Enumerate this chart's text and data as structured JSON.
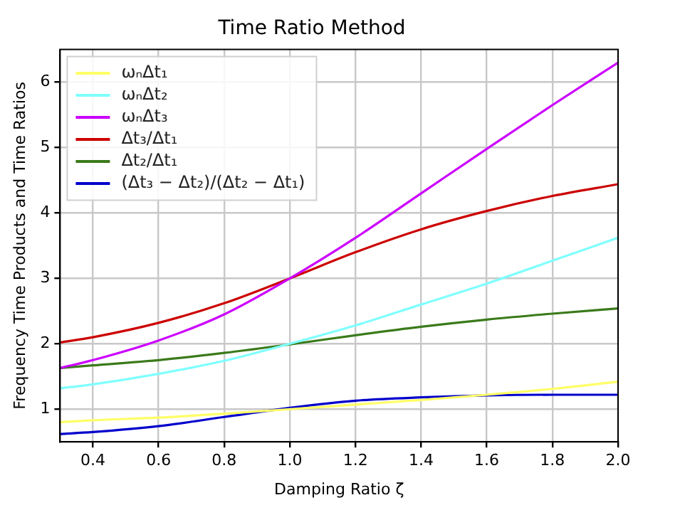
{
  "chart_data": {
    "type": "line",
    "title": "Time Ratio Method",
    "xlabel": "Damping Ratio ζ",
    "ylabel": "Frequency Time Products and Time Ratios",
    "x": [
      0.3,
      0.4,
      0.6,
      0.8,
      1.0,
      1.2,
      1.4,
      1.6,
      1.8,
      2.0
    ],
    "xlim": [
      0.3,
      2.0
    ],
    "xticks": [
      {
        "value": 0.4,
        "label": "0.4"
      },
      {
        "value": 0.6,
        "label": "0.6"
      },
      {
        "value": 0.8,
        "label": "0.8"
      },
      {
        "value": 1.0,
        "label": "1.0"
      },
      {
        "value": 1.2,
        "label": "1.2"
      },
      {
        "value": 1.4,
        "label": "1.4"
      },
      {
        "value": 1.6,
        "label": "1.6"
      },
      {
        "value": 1.8,
        "label": "1.8"
      },
      {
        "value": 2.0,
        "label": "2.0"
      }
    ],
    "ylim": [
      0.5,
      6.5
    ],
    "yticks": [
      1,
      2,
      3,
      4,
      5,
      6
    ],
    "grid": true,
    "legend": "top left",
    "marker": "none",
    "line_style": "solid",
    "series": [
      {
        "name": "ωₙΔt₁",
        "color": "#ffff66",
        "values": [
          0.8,
          0.83,
          0.87,
          0.93,
          1.0,
          1.07,
          1.14,
          1.22,
          1.31,
          1.42
        ]
      },
      {
        "name": "ωₙΔt₂",
        "color": "#80ffff",
        "values": [
          1.32,
          1.38,
          1.54,
          1.74,
          2.0,
          2.28,
          2.6,
          2.92,
          3.27,
          3.62
        ]
      },
      {
        "name": "ωₙΔt₃",
        "color": "#cc00ff",
        "values": [
          1.63,
          1.75,
          2.05,
          2.45,
          3.0,
          3.62,
          4.3,
          4.98,
          5.65,
          6.3
        ]
      },
      {
        "name": "Δt₃/Δt₁",
        "color": "#cc0000",
        "values": [
          2.02,
          2.1,
          2.32,
          2.62,
          3.0,
          3.4,
          3.75,
          4.03,
          4.26,
          4.44
        ]
      },
      {
        "name": "Δt₂/Δt₁",
        "color": "#3a7a1a",
        "values": [
          1.63,
          1.67,
          1.75,
          1.86,
          1.99,
          2.13,
          2.26,
          2.37,
          2.46,
          2.54
        ]
      },
      {
        "name": "(Δt₃ − Δt₂)/(Δt₂ − Δt₁)",
        "color": "#0000cc",
        "values": [
          0.62,
          0.65,
          0.74,
          0.88,
          1.02,
          1.13,
          1.18,
          1.21,
          1.22,
          1.22
        ]
      }
    ]
  }
}
